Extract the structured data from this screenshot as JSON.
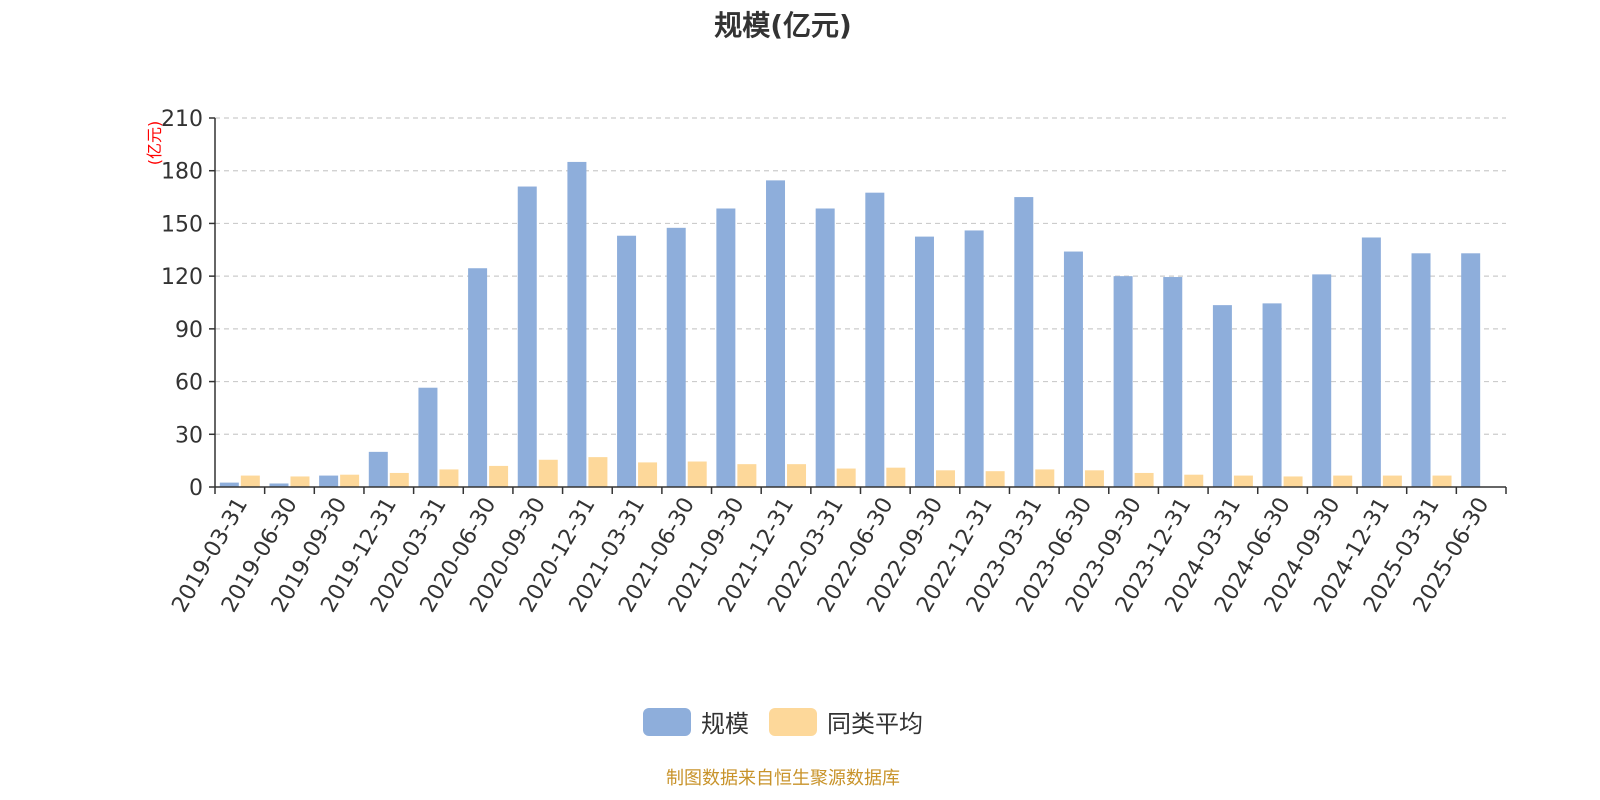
{
  "chart_data": {
    "type": "bar",
    "title": "规模(亿元)",
    "ylabel": "(亿元)",
    "xlabel": "",
    "ylim": [
      0,
      210
    ],
    "yticks": [
      0,
      30,
      60,
      90,
      120,
      150,
      180,
      210
    ],
    "grid": true,
    "legend_position": "bottom",
    "categories": [
      "2019-03-31",
      "2019-06-30",
      "2019-09-30",
      "2019-12-31",
      "2020-03-31",
      "2020-06-30",
      "2020-09-30",
      "2020-12-31",
      "2021-03-31",
      "2021-06-30",
      "2021-09-30",
      "2021-12-31",
      "2022-03-31",
      "2022-06-30",
      "2022-09-30",
      "2022-12-31",
      "2023-03-31",
      "2023-06-30",
      "2023-09-30",
      "2023-12-31",
      "2024-03-31",
      "2024-06-30",
      "2024-09-30",
      "2024-12-31",
      "2025-03-31",
      "2025-06-30"
    ],
    "series": [
      {
        "name": "规模",
        "color": "#8eaedb",
        "values": [
          2.5,
          2.0,
          6.5,
          20,
          56.5,
          124.5,
          171,
          185,
          143,
          147.5,
          158.5,
          174.5,
          158.5,
          167.5,
          142.5,
          146,
          165,
          134,
          120,
          119.5,
          103.5,
          104.5,
          121,
          142,
          133,
          133
        ]
      },
      {
        "name": "同类平均",
        "color": "#fdd89a",
        "values": [
          6.5,
          6.0,
          7.0,
          8.0,
          10.0,
          12.0,
          15.5,
          17.0,
          14.0,
          14.5,
          13.0,
          13.0,
          10.5,
          11.0,
          9.5,
          9.0,
          10.0,
          9.5,
          8.0,
          7.0,
          6.5,
          6.0,
          6.5,
          6.5,
          6.5,
          null
        ]
      }
    ],
    "source_note": "制图数据来自恒生聚源数据库"
  },
  "colors": {
    "axis": "#333333",
    "grid": "#cccccc",
    "ylabel": "#ff0000",
    "source": "#c8932a"
  }
}
